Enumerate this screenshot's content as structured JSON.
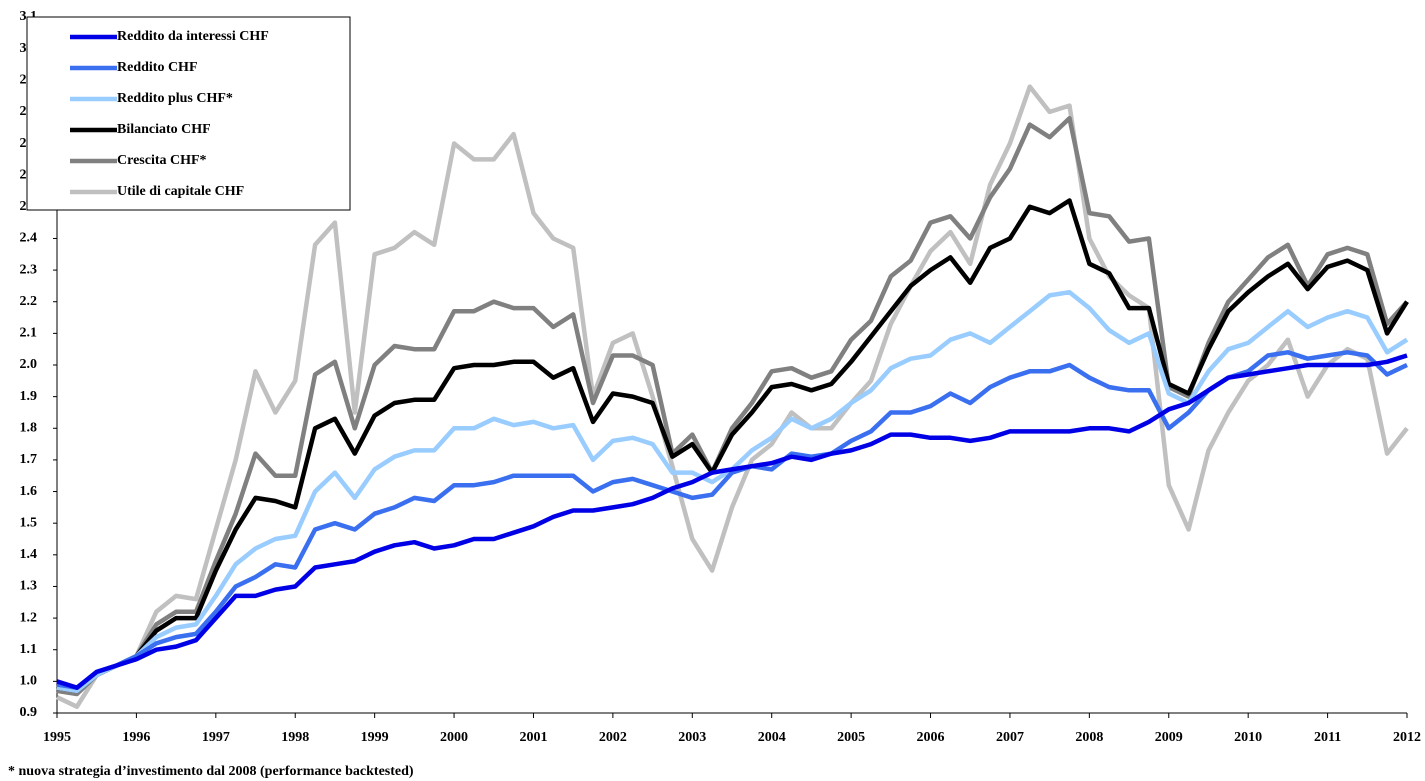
{
  "chart_data": {
    "type": "line",
    "footnote": "* nuova strategia d’investimento dal 2008 (performance backtested)",
    "x": [
      1995,
      1995.25,
      1995.5,
      1995.75,
      1996,
      1996.25,
      1996.5,
      1996.75,
      1997,
      1997.25,
      1997.5,
      1997.75,
      1998,
      1998.25,
      1998.5,
      1998.75,
      1999,
      1999.25,
      1999.5,
      1999.75,
      2000,
      2000.25,
      2000.5,
      2000.75,
      2001,
      2001.25,
      2001.5,
      2001.75,
      2002,
      2002.25,
      2002.5,
      2002.75,
      2003,
      2003.25,
      2003.5,
      2003.75,
      2004,
      2004.25,
      2004.5,
      2004.75,
      2005,
      2005.25,
      2005.5,
      2005.75,
      2006,
      2006.25,
      2006.5,
      2006.75,
      2007,
      2007.25,
      2007.5,
      2007.75,
      2008,
      2008.25,
      2008.5,
      2008.75,
      2009,
      2009.25,
      2009.5,
      2009.75,
      2010,
      2010.25,
      2010.5,
      2010.75,
      2011,
      2011.25,
      2011.5,
      2011.75,
      2012
    ],
    "xlim": [
      1995,
      2012
    ],
    "xticks": [
      1995,
      1996,
      1997,
      1998,
      1999,
      2000,
      2001,
      2002,
      2003,
      2004,
      2005,
      2006,
      2007,
      2008,
      2009,
      2010,
      2011,
      2012
    ],
    "ylim": [
      0.9,
      3.1
    ],
    "yticks": [
      0.9,
      {
        "value": 1,
        "label": "1.0"
      },
      1.1,
      1.2,
      1.3,
      1.4,
      1.5,
      1.6,
      1.7,
      1.8,
      1.9,
      {
        "value": 2,
        "label": "2.0"
      },
      2.1,
      2.2,
      2.3,
      2.4,
      2.5,
      2.6,
      2.7,
      2.8,
      2.9,
      {
        "value": 3,
        "label": "3.0"
      },
      3.1
    ],
    "legend": "upper-left",
    "series": [
      {
        "name": "Reddito da interessi CHF",
        "color": "#0000e6",
        "values": [
          1.0,
          0.98,
          1.03,
          1.05,
          1.07,
          1.1,
          1.11,
          1.13,
          1.2,
          1.27,
          1.27,
          1.29,
          1.3,
          1.36,
          1.37,
          1.38,
          1.41,
          1.43,
          1.44,
          1.42,
          1.43,
          1.45,
          1.45,
          1.47,
          1.49,
          1.52,
          1.54,
          1.54,
          1.55,
          1.56,
          1.58,
          1.61,
          1.63,
          1.66,
          1.67,
          1.68,
          1.69,
          1.71,
          1.7,
          1.72,
          1.73,
          1.75,
          1.78,
          1.78,
          1.77,
          1.77,
          1.76,
          1.77,
          1.79,
          1.79,
          1.79,
          1.79,
          1.8,
          1.8,
          1.79,
          1.82,
          1.86,
          1.88,
          1.92,
          1.96,
          1.97,
          1.98,
          1.99,
          2.0,
          2.0,
          2.0,
          2.0,
          2.01,
          2.03
        ]
      },
      {
        "name": "Reddito CHF",
        "color": "#3a6ff0",
        "values": [
          0.99,
          0.98,
          1.03,
          1.05,
          1.08,
          1.12,
          1.14,
          1.15,
          1.22,
          1.3,
          1.33,
          1.37,
          1.36,
          1.48,
          1.5,
          1.48,
          1.53,
          1.55,
          1.58,
          1.57,
          1.62,
          1.62,
          1.63,
          1.65,
          1.65,
          1.65,
          1.65,
          1.6,
          1.63,
          1.64,
          1.62,
          1.6,
          1.58,
          1.59,
          1.66,
          1.68,
          1.67,
          1.72,
          1.71,
          1.72,
          1.76,
          1.79,
          1.85,
          1.85,
          1.87,
          1.91,
          1.88,
          1.93,
          1.96,
          1.98,
          1.98,
          2.0,
          1.96,
          1.93,
          1.92,
          1.92,
          1.8,
          1.85,
          1.92,
          1.96,
          1.98,
          2.03,
          2.04,
          2.02,
          2.03,
          2.04,
          2.03,
          1.97,
          2.0
        ]
      },
      {
        "name": "Reddito plus CHF*",
        "color": "#99ccff",
        "values": [
          0.98,
          0.97,
          1.02,
          1.05,
          1.08,
          1.14,
          1.17,
          1.18,
          1.27,
          1.37,
          1.42,
          1.45,
          1.46,
          1.6,
          1.66,
          1.58,
          1.67,
          1.71,
          1.73,
          1.73,
          1.8,
          1.8,
          1.83,
          1.81,
          1.82,
          1.8,
          1.81,
          1.7,
          1.76,
          1.77,
          1.75,
          1.66,
          1.66,
          1.63,
          1.67,
          1.73,
          1.77,
          1.83,
          1.8,
          1.83,
          1.88,
          1.92,
          1.99,
          2.02,
          2.03,
          2.08,
          2.1,
          2.07,
          2.12,
          2.17,
          2.22,
          2.23,
          2.18,
          2.11,
          2.07,
          2.1,
          1.91,
          1.88,
          1.98,
          2.05,
          2.07,
          2.12,
          2.17,
          2.12,
          2.15,
          2.17,
          2.15,
          2.04,
          2.08
        ]
      },
      {
        "name": "Bilanciato CHF",
        "color": "#000000",
        "values": [
          0.98,
          0.97,
          1.02,
          1.05,
          1.08,
          1.16,
          1.2,
          1.2,
          1.35,
          1.48,
          1.58,
          1.57,
          1.55,
          1.8,
          1.83,
          1.72,
          1.84,
          1.88,
          1.89,
          1.89,
          1.99,
          2.0,
          2.0,
          2.01,
          2.01,
          1.96,
          1.99,
          1.82,
          1.91,
          1.9,
          1.88,
          1.71,
          1.75,
          1.66,
          1.78,
          1.85,
          1.93,
          1.94,
          1.92,
          1.94,
          2.01,
          2.09,
          2.17,
          2.25,
          2.3,
          2.34,
          2.26,
          2.37,
          2.4,
          2.5,
          2.48,
          2.52,
          2.32,
          2.29,
          2.18,
          2.18,
          1.94,
          1.91,
          2.05,
          2.17,
          2.23,
          2.28,
          2.32,
          2.24,
          2.31,
          2.33,
          2.3,
          2.1,
          2.2
        ]
      },
      {
        "name": "Crescita CHF*",
        "color": "#808080",
        "values": [
          0.97,
          0.96,
          1.02,
          1.05,
          1.08,
          1.18,
          1.22,
          1.22,
          1.38,
          1.53,
          1.72,
          1.65,
          1.65,
          1.97,
          2.01,
          1.8,
          2.0,
          2.06,
          2.05,
          2.05,
          2.17,
          2.17,
          2.2,
          2.18,
          2.18,
          2.12,
          2.16,
          1.88,
          2.03,
          2.03,
          2.0,
          1.72,
          1.78,
          1.66,
          1.8,
          1.88,
          1.98,
          1.99,
          1.96,
          1.98,
          2.08,
          2.14,
          2.28,
          2.33,
          2.45,
          2.47,
          2.4,
          2.53,
          2.62,
          2.76,
          2.72,
          2.78,
          2.48,
          2.47,
          2.39,
          2.4,
          1.93,
          1.9,
          2.07,
          2.2,
          2.27,
          2.34,
          2.38,
          2.25,
          2.35,
          2.37,
          2.35,
          2.13,
          2.2
        ]
      },
      {
        "name": "Utile di capitale CHF",
        "color": "#c0c0c0",
        "values": [
          0.95,
          0.92,
          1.02,
          1.05,
          1.08,
          1.22,
          1.27,
          1.26,
          1.48,
          1.7,
          1.98,
          1.85,
          1.95,
          2.38,
          2.45,
          1.85,
          2.35,
          2.37,
          2.42,
          2.38,
          2.7,
          2.65,
          2.65,
          2.73,
          2.48,
          2.4,
          2.37,
          1.9,
          2.07,
          2.1,
          1.9,
          1.68,
          1.45,
          1.35,
          1.55,
          1.7,
          1.75,
          1.85,
          1.8,
          1.8,
          1.88,
          1.95,
          2.13,
          2.25,
          2.36,
          2.42,
          2.32,
          2.57,
          2.7,
          2.88,
          2.8,
          2.82,
          2.4,
          2.28,
          2.22,
          2.18,
          1.62,
          1.48,
          1.73,
          1.85,
          1.95,
          2.0,
          2.08,
          1.9,
          2.0,
          2.05,
          2.02,
          1.72,
          1.8
        ]
      }
    ]
  }
}
